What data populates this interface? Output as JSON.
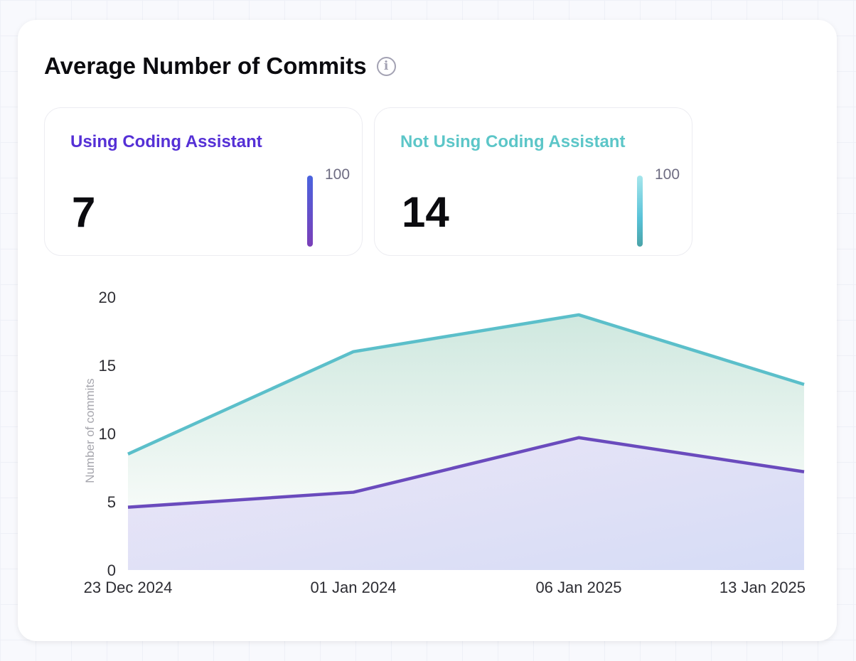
{
  "title": "Average Number of Commits",
  "info_icon": "info-icon",
  "stats": [
    {
      "label": "Using Coding Assistant",
      "value": "7",
      "max": "100",
      "color": "#5530d6"
    },
    {
      "label": "Not Using Coding Assistant",
      "value": "14",
      "max": "100",
      "color": "#5cc6c8"
    }
  ],
  "chart_data": {
    "type": "area",
    "ylabel": "Number of commits",
    "categories": [
      "23 Dec 2024",
      "01 Jan 2024",
      "06 Jan 2025",
      "13 Jan 2025"
    ],
    "ylim": [
      0,
      20
    ],
    "yticks": [
      "0",
      "5",
      "10",
      "15",
      "20"
    ],
    "grid": false,
    "series": [
      {
        "values": [
          8.5,
          16.0,
          18.7,
          13.6
        ],
        "color": "#5bbfca"
      },
      {
        "values": [
          4.6,
          5.7,
          9.7,
          7.2
        ],
        "color": "#6a4bbd"
      }
    ]
  }
}
